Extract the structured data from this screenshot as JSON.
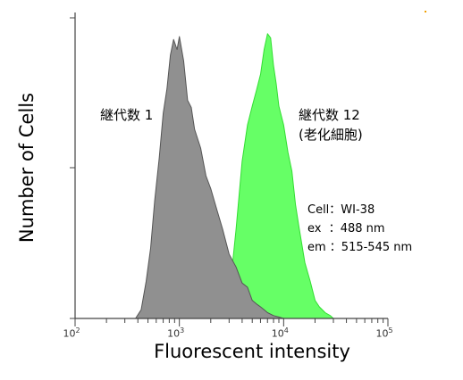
{
  "chart_data": {
    "type": "area",
    "xscale": "log",
    "xlim": [
      100,
      100000
    ],
    "ylim": [
      0,
      1
    ],
    "xlabel": "Fluorescent intensity",
    "ylabel": "Number of Cells",
    "xtick_bases": [
      "10",
      "10",
      "10",
      "10"
    ],
    "xtick_exps": [
      "2",
      "3",
      "4",
      "5"
    ],
    "xtick_values": [
      100,
      1000,
      10000,
      100000
    ],
    "series": [
      {
        "name": "継代数 12",
        "name_line2": "(老化細胞)",
        "color": "#66ff66",
        "edge": "#33dd33",
        "x": [
          2500,
          3000,
          3500,
          4000,
          4500,
          5000,
          5500,
          6000,
          6500,
          7000,
          7500,
          8000,
          8500,
          9000,
          10000,
          11000,
          12000,
          13000,
          14000,
          16000,
          18000,
          20000,
          22000,
          25000,
          28000,
          30000
        ],
        "y": [
          0.0,
          0.08,
          0.3,
          0.55,
          0.66,
          0.74,
          0.78,
          0.85,
          0.92,
          0.99,
          0.96,
          0.88,
          0.8,
          0.74,
          0.66,
          0.58,
          0.5,
          0.4,
          0.31,
          0.2,
          0.12,
          0.07,
          0.04,
          0.02,
          0.01,
          0.0
        ]
      },
      {
        "name": "継代数 1",
        "color": "#909090",
        "edge": "#555555",
        "x": [
          380,
          430,
          480,
          530,
          580,
          640,
          700,
          760,
          820,
          880,
          950,
          1000,
          1100,
          1200,
          1300,
          1400,
          1600,
          1800,
          2000,
          2300,
          2600,
          3000,
          3500,
          4000,
          4500,
          5000,
          5500,
          6000,
          6500,
          7000,
          8000,
          9000,
          10000
        ],
        "y": [
          0.0,
          0.03,
          0.12,
          0.25,
          0.4,
          0.56,
          0.7,
          0.8,
          0.9,
          0.97,
          0.92,
          0.98,
          0.88,
          0.76,
          0.72,
          0.66,
          0.58,
          0.5,
          0.44,
          0.38,
          0.3,
          0.23,
          0.17,
          0.13,
          0.1,
          0.07,
          0.05,
          0.04,
          0.03,
          0.02,
          0.01,
          0.005,
          0.0
        ]
      }
    ],
    "annotations": {
      "cell": "Cell：WI-38",
      "ex": "ex  ：488 nm",
      "em": "em ：515-545 nm"
    }
  }
}
